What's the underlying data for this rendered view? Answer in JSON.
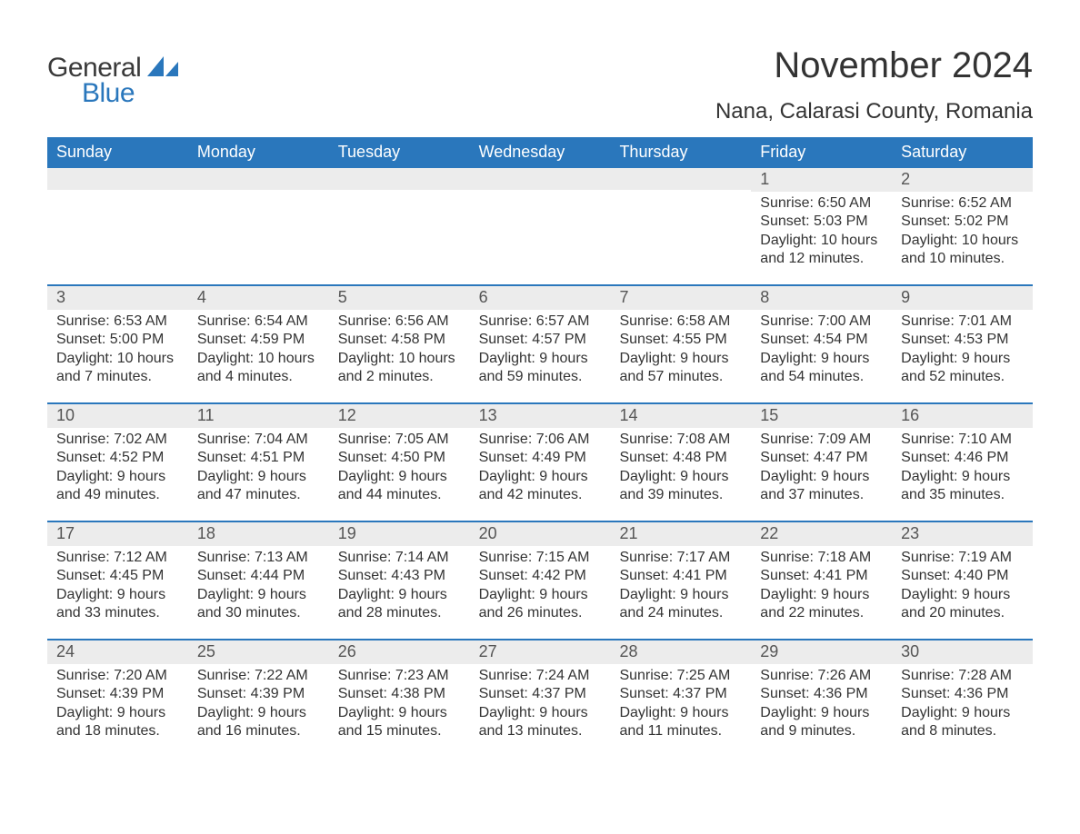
{
  "brand": {
    "word1": "General",
    "word2": "Blue"
  },
  "title": "November 2024",
  "location": "Nana, Calarasi County, Romania",
  "colors": {
    "header_bg": "#2a77bc",
    "header_text": "#ffffff",
    "daynum_bg": "#ececec",
    "rule": "#2a77bc",
    "body_text": "#333333",
    "logo_gray": "#3a3a3a",
    "logo_blue": "#2a77bc"
  },
  "day_headers": [
    "Sunday",
    "Monday",
    "Tuesday",
    "Wednesday",
    "Thursday",
    "Friday",
    "Saturday"
  ],
  "weeks": [
    [
      {
        "n": "",
        "sunrise": "",
        "sunset": "",
        "daylight": ""
      },
      {
        "n": "",
        "sunrise": "",
        "sunset": "",
        "daylight": ""
      },
      {
        "n": "",
        "sunrise": "",
        "sunset": "",
        "daylight": ""
      },
      {
        "n": "",
        "sunrise": "",
        "sunset": "",
        "daylight": ""
      },
      {
        "n": "",
        "sunrise": "",
        "sunset": "",
        "daylight": ""
      },
      {
        "n": "1",
        "sunrise": "Sunrise: 6:50 AM",
        "sunset": "Sunset: 5:03 PM",
        "daylight": "Daylight: 10 hours and 12 minutes."
      },
      {
        "n": "2",
        "sunrise": "Sunrise: 6:52 AM",
        "sunset": "Sunset: 5:02 PM",
        "daylight": "Daylight: 10 hours and 10 minutes."
      }
    ],
    [
      {
        "n": "3",
        "sunrise": "Sunrise: 6:53 AM",
        "sunset": "Sunset: 5:00 PM",
        "daylight": "Daylight: 10 hours and 7 minutes."
      },
      {
        "n": "4",
        "sunrise": "Sunrise: 6:54 AM",
        "sunset": "Sunset: 4:59 PM",
        "daylight": "Daylight: 10 hours and 4 minutes."
      },
      {
        "n": "5",
        "sunrise": "Sunrise: 6:56 AM",
        "sunset": "Sunset: 4:58 PM",
        "daylight": "Daylight: 10 hours and 2 minutes."
      },
      {
        "n": "6",
        "sunrise": "Sunrise: 6:57 AM",
        "sunset": "Sunset: 4:57 PM",
        "daylight": "Daylight: 9 hours and 59 minutes."
      },
      {
        "n": "7",
        "sunrise": "Sunrise: 6:58 AM",
        "sunset": "Sunset: 4:55 PM",
        "daylight": "Daylight: 9 hours and 57 minutes."
      },
      {
        "n": "8",
        "sunrise": "Sunrise: 7:00 AM",
        "sunset": "Sunset: 4:54 PM",
        "daylight": "Daylight: 9 hours and 54 minutes."
      },
      {
        "n": "9",
        "sunrise": "Sunrise: 7:01 AM",
        "sunset": "Sunset: 4:53 PM",
        "daylight": "Daylight: 9 hours and 52 minutes."
      }
    ],
    [
      {
        "n": "10",
        "sunrise": "Sunrise: 7:02 AM",
        "sunset": "Sunset: 4:52 PM",
        "daylight": "Daylight: 9 hours and 49 minutes."
      },
      {
        "n": "11",
        "sunrise": "Sunrise: 7:04 AM",
        "sunset": "Sunset: 4:51 PM",
        "daylight": "Daylight: 9 hours and 47 minutes."
      },
      {
        "n": "12",
        "sunrise": "Sunrise: 7:05 AM",
        "sunset": "Sunset: 4:50 PM",
        "daylight": "Daylight: 9 hours and 44 minutes."
      },
      {
        "n": "13",
        "sunrise": "Sunrise: 7:06 AM",
        "sunset": "Sunset: 4:49 PM",
        "daylight": "Daylight: 9 hours and 42 minutes."
      },
      {
        "n": "14",
        "sunrise": "Sunrise: 7:08 AM",
        "sunset": "Sunset: 4:48 PM",
        "daylight": "Daylight: 9 hours and 39 minutes."
      },
      {
        "n": "15",
        "sunrise": "Sunrise: 7:09 AM",
        "sunset": "Sunset: 4:47 PM",
        "daylight": "Daylight: 9 hours and 37 minutes."
      },
      {
        "n": "16",
        "sunrise": "Sunrise: 7:10 AM",
        "sunset": "Sunset: 4:46 PM",
        "daylight": "Daylight: 9 hours and 35 minutes."
      }
    ],
    [
      {
        "n": "17",
        "sunrise": "Sunrise: 7:12 AM",
        "sunset": "Sunset: 4:45 PM",
        "daylight": "Daylight: 9 hours and 33 minutes."
      },
      {
        "n": "18",
        "sunrise": "Sunrise: 7:13 AM",
        "sunset": "Sunset: 4:44 PM",
        "daylight": "Daylight: 9 hours and 30 minutes."
      },
      {
        "n": "19",
        "sunrise": "Sunrise: 7:14 AM",
        "sunset": "Sunset: 4:43 PM",
        "daylight": "Daylight: 9 hours and 28 minutes."
      },
      {
        "n": "20",
        "sunrise": "Sunrise: 7:15 AM",
        "sunset": "Sunset: 4:42 PM",
        "daylight": "Daylight: 9 hours and 26 minutes."
      },
      {
        "n": "21",
        "sunrise": "Sunrise: 7:17 AM",
        "sunset": "Sunset: 4:41 PM",
        "daylight": "Daylight: 9 hours and 24 minutes."
      },
      {
        "n": "22",
        "sunrise": "Sunrise: 7:18 AM",
        "sunset": "Sunset: 4:41 PM",
        "daylight": "Daylight: 9 hours and 22 minutes."
      },
      {
        "n": "23",
        "sunrise": "Sunrise: 7:19 AM",
        "sunset": "Sunset: 4:40 PM",
        "daylight": "Daylight: 9 hours and 20 minutes."
      }
    ],
    [
      {
        "n": "24",
        "sunrise": "Sunrise: 7:20 AM",
        "sunset": "Sunset: 4:39 PM",
        "daylight": "Daylight: 9 hours and 18 minutes."
      },
      {
        "n": "25",
        "sunrise": "Sunrise: 7:22 AM",
        "sunset": "Sunset: 4:39 PM",
        "daylight": "Daylight: 9 hours and 16 minutes."
      },
      {
        "n": "26",
        "sunrise": "Sunrise: 7:23 AM",
        "sunset": "Sunset: 4:38 PM",
        "daylight": "Daylight: 9 hours and 15 minutes."
      },
      {
        "n": "27",
        "sunrise": "Sunrise: 7:24 AM",
        "sunset": "Sunset: 4:37 PM",
        "daylight": "Daylight: 9 hours and 13 minutes."
      },
      {
        "n": "28",
        "sunrise": "Sunrise: 7:25 AM",
        "sunset": "Sunset: 4:37 PM",
        "daylight": "Daylight: 9 hours and 11 minutes."
      },
      {
        "n": "29",
        "sunrise": "Sunrise: 7:26 AM",
        "sunset": "Sunset: 4:36 PM",
        "daylight": "Daylight: 9 hours and 9 minutes."
      },
      {
        "n": "30",
        "sunrise": "Sunrise: 7:28 AM",
        "sunset": "Sunset: 4:36 PM",
        "daylight": "Daylight: 9 hours and 8 minutes."
      }
    ]
  ]
}
